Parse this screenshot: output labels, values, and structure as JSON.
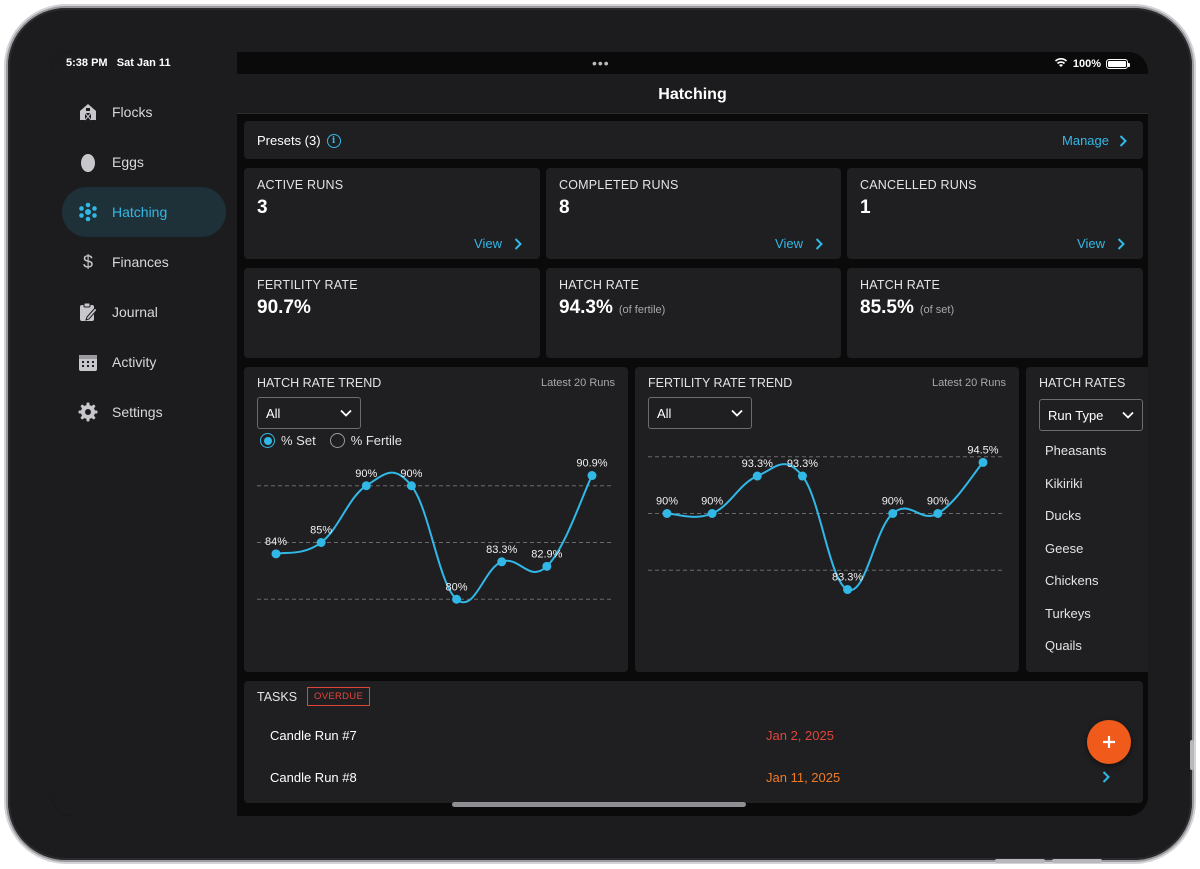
{
  "status_bar": {
    "time": "5:38 PM",
    "date": "Sat Jan 11",
    "battery": "100%",
    "multitask": "•••"
  },
  "sidebar": {
    "items": [
      {
        "label": "Flocks",
        "icon": "barn-icon"
      },
      {
        "label": "Eggs",
        "icon": "egg-icon"
      },
      {
        "label": "Hatching",
        "icon": "hatch-icon",
        "active": true
      },
      {
        "label": "Finances",
        "icon": "dollar-icon"
      },
      {
        "label": "Journal",
        "icon": "journal-icon"
      },
      {
        "label": "Activity",
        "icon": "calendar-icon"
      },
      {
        "label": "Settings",
        "icon": "gear-icon"
      }
    ]
  },
  "header": {
    "title": "Hatching"
  },
  "presets": {
    "label": "Presets (3)",
    "manage": "Manage"
  },
  "stats": {
    "active": {
      "title": "ACTIVE RUNS",
      "value": "3",
      "link": "View"
    },
    "completed": {
      "title": "COMPLETED RUNS",
      "value": "8",
      "link": "View"
    },
    "cancelled": {
      "title": "CANCELLED RUNS",
      "value": "1",
      "link": "View"
    },
    "fertility": {
      "title": "FERTILITY RATE",
      "value": "90.7%"
    },
    "hatch_fertile": {
      "title": "HATCH RATE",
      "value": "94.3%",
      "sub": "(of fertile)"
    },
    "hatch_set": {
      "title": "HATCH RATE",
      "value": "85.5%",
      "sub": "(of set)"
    }
  },
  "hatch_trend": {
    "title": "HATCH RATE TREND",
    "subtitle": "Latest 20 Runs",
    "filter": "All",
    "radio_set": "% Set",
    "radio_fertile": "% Fertile",
    "selected": "% Set"
  },
  "fertility_trend": {
    "title": "FERTILITY RATE TREND",
    "subtitle": "Latest 20 Runs",
    "filter": "All"
  },
  "hatch_rates": {
    "title": "HATCH RATES",
    "filter": "Run Type",
    "items": [
      "Pheasants",
      "Kikiriki",
      "Ducks",
      "Geese",
      "Chickens",
      "Turkeys",
      "Quails"
    ]
  },
  "tasks": {
    "title": "TASKS",
    "badge": "OVERDUE",
    "rows": [
      {
        "name": "Candle Run #7",
        "date": "Jan 2, 2025",
        "date_color": "#e0453a"
      },
      {
        "name": "Candle Run #8",
        "date": "Jan 11, 2025",
        "date_color": "#f07a28"
      }
    ]
  },
  "colors": {
    "accent": "#31b8e6",
    "fab": "#f05a1a",
    "overdue": "#e0453a"
  },
  "chart_data": [
    {
      "type": "line",
      "title": "HATCH RATE TREND",
      "x": [
        1,
        2,
        3,
        4,
        5,
        6,
        7,
        8
      ],
      "values": [
        84,
        85,
        90,
        90,
        80,
        83.3,
        82.9,
        90.9
      ],
      "labels": [
        "84%",
        "85%",
        "90%",
        "90%",
        "80%",
        "83.3%",
        "82.9%",
        "90.9%"
      ],
      "ylim": [
        75,
        95
      ],
      "gridlines": [
        80,
        85,
        90
      ]
    },
    {
      "type": "line",
      "title": "FERTILITY RATE TREND",
      "x": [
        1,
        2,
        3,
        4,
        5,
        6,
        7,
        8
      ],
      "values": [
        90,
        90,
        93.3,
        93.3,
        83.3,
        90,
        90,
        94.5
      ],
      "labels": [
        "90%",
        "90%",
        "93.3%",
        "93.3%",
        "83.3%",
        "90%",
        "90%",
        "94.5%"
      ],
      "ylim": [
        80,
        100
      ],
      "gridlines": [
        85,
        90,
        95
      ]
    }
  ]
}
